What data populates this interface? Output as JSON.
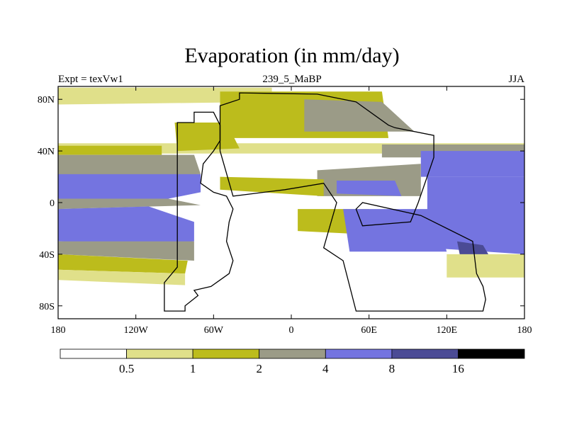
{
  "chart_data": {
    "type": "filled-contour-map",
    "title": "Evaporation (in mm/day)",
    "left_string": "Expt = texVw1",
    "center_string": "239_5_MaBP",
    "right_string": "JJA",
    "variable": "Evaporation",
    "units": "mm/day",
    "xlim": [
      -180,
      180
    ],
    "ylim": [
      -90,
      90
    ],
    "x_ticks": [
      {
        "value": -180,
        "label": "180"
      },
      {
        "value": -120,
        "label": "120W"
      },
      {
        "value": -60,
        "label": "60W"
      },
      {
        "value": 0,
        "label": "0"
      },
      {
        "value": 60,
        "label": "60E"
      },
      {
        "value": 120,
        "label": "120E"
      },
      {
        "value": 180,
        "label": "180"
      }
    ],
    "y_ticks": [
      {
        "value": 80,
        "label": "80N"
      },
      {
        "value": 40,
        "label": "40N"
      },
      {
        "value": 0,
        "label": "0"
      },
      {
        "value": -40,
        "label": "40S"
      },
      {
        "value": -80,
        "label": "80S"
      }
    ],
    "levels": [
      0.5,
      1,
      2,
      4,
      8,
      16
    ],
    "level_labels": [
      "0.5",
      "1",
      "2",
      "4",
      "8",
      "16"
    ],
    "colors": [
      "#ffffff",
      "#e0e08a",
      "#bcbc1c",
      "#9b9b87",
      "#7474e0",
      "#4b4b95",
      "#000000"
    ],
    "land_outline_color": "#000000",
    "regions": [
      {
        "band": 1,
        "lon": [
          -180,
          -15,
          -15,
          -180
        ],
        "lat": [
          89,
          89,
          78,
          76
        ]
      },
      {
        "band": 1,
        "lon": [
          -180,
          180,
          180,
          -180
        ],
        "lat": [
          46,
          46,
          38,
          38
        ]
      },
      {
        "band": 2,
        "lon": [
          -180,
          -100,
          -100,
          -180
        ],
        "lat": [
          44,
          44,
          37,
          37
        ]
      },
      {
        "band": 3,
        "lon": [
          -180,
          -75,
          -70,
          -180
        ],
        "lat": [
          37,
          37,
          22,
          20
        ]
      },
      {
        "band": 4,
        "lon": [
          -180,
          -70,
          -70,
          -95,
          -180
        ],
        "lat": [
          22,
          22,
          8,
          3,
          3
        ]
      },
      {
        "band": 3,
        "lon": [
          -180,
          -95,
          -70,
          -180
        ],
        "lat": [
          3,
          3,
          -2,
          -5
        ]
      },
      {
        "band": 4,
        "lon": [
          -180,
          -110,
          -75,
          -75,
          -110,
          -180
        ],
        "lat": [
          -5,
          -3,
          -15,
          -30,
          -32,
          -30
        ]
      },
      {
        "band": 3,
        "lon": [
          -180,
          -75,
          -75,
          -180
        ],
        "lat": [
          -30,
          -30,
          -45,
          -40
        ]
      },
      {
        "band": 2,
        "lon": [
          -180,
          -80,
          -82,
          -180
        ],
        "lat": [
          -40,
          -45,
          -55,
          -52
        ]
      },
      {
        "band": 1,
        "lon": [
          -180,
          -82,
          -82,
          -180
        ],
        "lat": [
          -52,
          -55,
          -64,
          -60
        ]
      },
      {
        "band": 2,
        "lon": [
          -55,
          70,
          75,
          -55
        ],
        "lat": [
          86,
          86,
          50,
          50
        ]
      },
      {
        "band": 3,
        "lon": [
          10,
          70,
          95,
          10
        ],
        "lat": [
          80,
          78,
          55,
          55
        ]
      },
      {
        "band": 2,
        "lon": [
          -90,
          -50,
          -40,
          -88
        ],
        "lat": [
          62,
          62,
          42,
          40
        ]
      },
      {
        "band": 3,
        "lon": [
          70,
          180,
          180,
          70
        ],
        "lat": [
          45,
          45,
          35,
          35
        ]
      },
      {
        "band": 4,
        "lon": [
          100,
          180,
          180,
          100
        ],
        "lat": [
          40,
          40,
          20,
          20
        ]
      },
      {
        "band": 4,
        "lon": [
          105,
          180,
          180,
          105
        ],
        "lat": [
          20,
          20,
          -40,
          -35
        ]
      },
      {
        "band": 3,
        "lon": [
          20,
          100,
          100,
          20
        ],
        "lat": [
          25,
          30,
          5,
          5
        ]
      },
      {
        "band": 4,
        "lon": [
          35,
          80,
          85,
          35
        ],
        "lat": [
          17,
          17,
          5,
          7
        ]
      },
      {
        "band": 2,
        "lon": [
          -55,
          25,
          25,
          -55
        ],
        "lat": [
          20,
          18,
          5,
          10
        ]
      },
      {
        "band": 2,
        "lon": [
          5,
          60,
          65,
          5
        ],
        "lat": [
          -5,
          -5,
          -25,
          -22
        ]
      },
      {
        "band": 4,
        "lon": [
          40,
          110,
          120,
          45
        ],
        "lat": [
          -5,
          -5,
          -38,
          -38
        ]
      },
      {
        "band": 5,
        "lon": [
          128,
          148,
          155,
          130
        ],
        "lat": [
          -30,
          -33,
          -45,
          -40
        ]
      },
      {
        "band": 1,
        "lon": [
          120,
          180,
          180,
          120
        ],
        "lat": [
          -40,
          -40,
          -58,
          -58
        ]
      }
    ],
    "continents": [
      {
        "name": "western-landmass",
        "lon": [
          -88,
          -75,
          -75,
          -60,
          -55,
          -55,
          -60,
          -68,
          -70,
          -60,
          -50,
          -45,
          -48,
          -50,
          -45,
          -48,
          -62,
          -75,
          -72,
          -82,
          -82,
          -98,
          -98,
          -88,
          -88
        ],
        "lat": [
          62,
          62,
          70,
          70,
          60,
          48,
          40,
          30,
          15,
          8,
          5,
          -5,
          -15,
          -30,
          -45,
          -55,
          -65,
          -68,
          -72,
          -80,
          -84,
          -84,
          -62,
          -50,
          62
        ]
      },
      {
        "name": "eastern-landmass",
        "lon": [
          -55,
          -40,
          -40,
          20,
          50,
          75,
          80,
          110,
          110,
          98,
          92,
          55,
          50,
          55,
          100,
          140,
          143,
          148,
          150,
          148,
          140,
          50,
          40,
          25,
          35,
          25,
          -5,
          -45,
          -55,
          -55
        ],
        "lat": [
          75,
          80,
          85,
          84,
          78,
          60,
          58,
          52,
          35,
          0,
          -15,
          -18,
          -5,
          0,
          -10,
          -30,
          -55,
          -65,
          -75,
          -84,
          -84,
          -84,
          -45,
          -35,
          0,
          15,
          10,
          5,
          40,
          75
        ]
      }
    ]
  }
}
